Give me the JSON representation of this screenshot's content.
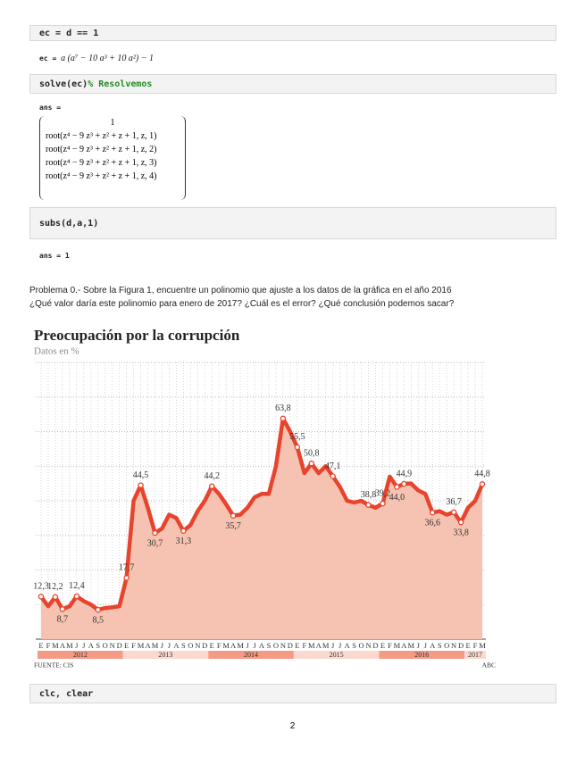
{
  "code1": "ec = d == 1",
  "out1": {
    "lhs": "ec = ",
    "expr": "a (a⁷ − 10 a³ + 10 a²) − 1"
  },
  "code2": {
    "code": "solve(ec) ",
    "comment": "% Resolvemos"
  },
  "out2": {
    "lhs": "ans =",
    "rows": [
      "1",
      "root(z⁴ − 9 z³ + z² + z + 1, z, 1)",
      "root(z⁴ − 9 z³ + z² + z + 1, z, 2)",
      "root(z⁴ − 9 z³ + z² + z + 1, z, 3)",
      "root(z⁴ − 9 z³ + z² + z + 1, z, 4)"
    ]
  },
  "code3": "subs(d,a,1)",
  "out3": "ans = 1",
  "paragraph": [
    "Problema 0.- Sobre la Figura 1, encuentre un polinomio que ajuste a los datos de la gráfica en el año 2016",
    "¿Qué valor daría este polinomio para enero de 2017? ¿Cuál es el error? ¿Qué conclusión podemos sacar?"
  ],
  "chart_data": {
    "type": "line",
    "title": "Preocupación por la corrupción",
    "subtitle": "Datos en %",
    "categories": [
      "E",
      "F",
      "M",
      "A",
      "M",
      "J",
      "J",
      "A",
      "S",
      "O",
      "N",
      "D",
      "E",
      "F",
      "M",
      "A",
      "M",
      "J",
      "J",
      "A",
      "S",
      "O",
      "N",
      "D",
      "E",
      "F",
      "M",
      "A",
      "M",
      "J",
      "J",
      "A",
      "S",
      "O",
      "N",
      "D",
      "E",
      "F",
      "M",
      "A",
      "M",
      "J",
      "J",
      "A",
      "S",
      "O",
      "N",
      "D",
      "E",
      "F",
      "M",
      "A",
      "M",
      "J",
      "J",
      "A",
      "S",
      "O",
      "N",
      "D",
      "E",
      "F",
      "M"
    ],
    "years": [
      "2012",
      "2013",
      "2014",
      "2015",
      "2016",
      "2017"
    ],
    "values": [
      12.3,
      9.5,
      12.2,
      8.7,
      9.5,
      12.4,
      11,
      10,
      8.5,
      9,
      9.2,
      9.5,
      17.7,
      40,
      44.5,
      38,
      30.7,
      32,
      36,
      35,
      31.3,
      33,
      37,
      40,
      44.2,
      42,
      39,
      35.7,
      36,
      38,
      41,
      42,
      42,
      50,
      63.8,
      60,
      55.5,
      48,
      50.8,
      48,
      50,
      47.1,
      44,
      40,
      39.5,
      40,
      38.8,
      38,
      39.2,
      47,
      44.0,
      44.9,
      45,
      43,
      42,
      36.6,
      37,
      36,
      36.7,
      33.8,
      38,
      40,
      44.8
    ],
    "value_labels": [
      "12,3",
      null,
      "12,2",
      "8,7",
      null,
      "12,4",
      null,
      null,
      "8,5",
      null,
      null,
      null,
      "17,7",
      null,
      "44,5",
      null,
      "30,7",
      null,
      null,
      null,
      "31,3",
      null,
      null,
      null,
      "44,2",
      null,
      null,
      "35,7",
      null,
      null,
      null,
      null,
      null,
      null,
      "63,8",
      null,
      "55,5",
      null,
      "50,8",
      null,
      null,
      "47,1",
      null,
      null,
      null,
      null,
      "38,8",
      null,
      "39,2",
      null,
      "44,0",
      "44,9",
      null,
      null,
      null,
      "36,6",
      null,
      null,
      "36,7",
      "33,8",
      null,
      null,
      "44,8"
    ],
    "color": "#e8432d",
    "area_color": "#f6c3b2",
    "ylim": [
      0,
      80
    ],
    "yticks": [
      10,
      20,
      30,
      40,
      50,
      60,
      70,
      80
    ],
    "grid": true,
    "source": "FUENTE: CIS",
    "credit": "ABC"
  },
  "code4": "clc, clear",
  "page_number": "2"
}
